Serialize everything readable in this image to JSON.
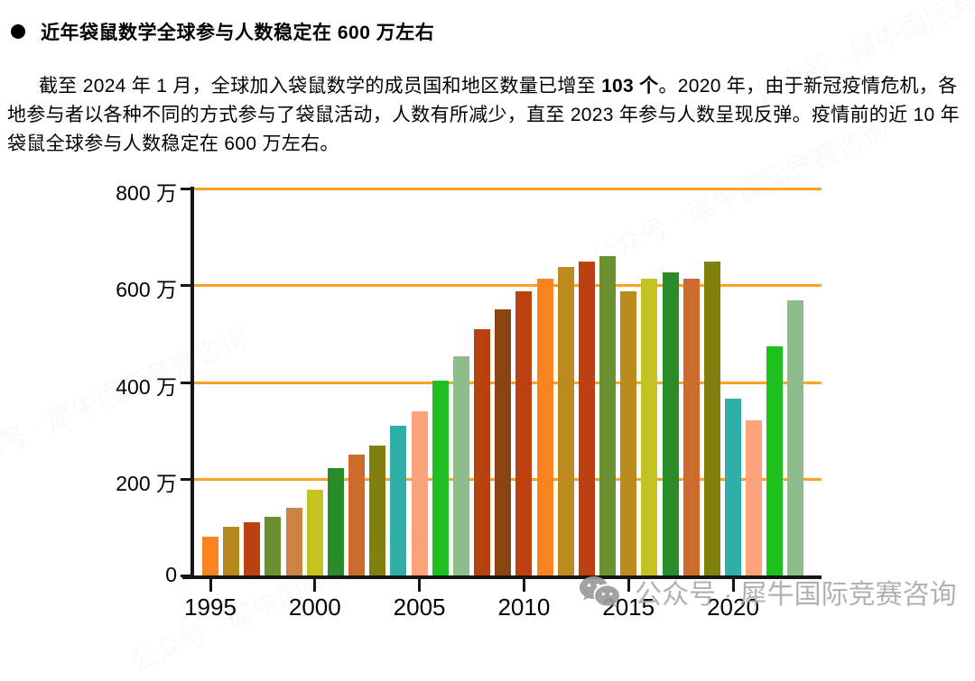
{
  "header": {
    "bullet_icon": "circle",
    "title": "近年袋鼠数学全球参与人数稳定在 600 万左右"
  },
  "paragraph": {
    "text_before_bold": "截至 2024 年 1 月，全球加入袋鼠数学的成员国和地区数量已增至 ",
    "bold": "103 个",
    "text_after_bold": "。2020 年，由于新冠疫情危机，各地参与者以各种不同的方式参与了袋鼠活动，人数有所减少，直至 2023 年参与人数呈现反弹。疫情前的近 10 年袋鼠全球参与人数稳定在 600 万左右。"
  },
  "watermark": {
    "icon": "wechat-icon",
    "text": "公众号 · 犀牛国际竞赛咨询",
    "color": "#ABABAB"
  },
  "chart_data": {
    "type": "bar",
    "title": "",
    "xlabel": "",
    "ylabel": "",
    "unit": "万",
    "ylim": [
      0,
      800
    ],
    "grid": "horizontal",
    "gridline_color": "#FCA326",
    "axis_color": "#161616",
    "x": [
      1995,
      1996,
      1997,
      1998,
      1999,
      2000,
      2001,
      2002,
      2003,
      2004,
      2005,
      2006,
      2007,
      2008,
      2009,
      2010,
      2011,
      2012,
      2013,
      2014,
      2015,
      2016,
      2017,
      2018,
      2019,
      2020,
      2021,
      2022,
      2023
    ],
    "values": [
      80,
      101,
      110,
      121,
      140,
      178,
      222,
      250,
      268,
      310,
      340,
      402,
      453,
      510,
      550,
      587,
      613,
      637,
      649,
      660,
      587,
      613,
      626,
      613,
      649,
      366,
      320,
      473,
      568
    ],
    "bar_colors": [
      "#FC8420",
      "#B8871E",
      "#BC4112",
      "#6C9030",
      "#CC8344",
      "#C5C322",
      "#2A8C28",
      "#CC6B2C",
      "#80800F",
      "#2FAFA7",
      "#FCA37C",
      "#1FBF1F",
      "#8FBC8B",
      "#B84110",
      "#8B4513",
      "#BC4010",
      "#FC8420",
      "#BD8A1E",
      "#BC4112",
      "#6C9030",
      "#BD8A1E",
      "#C5C322",
      "#2A8C28",
      "#CC6B2C",
      "#80800F",
      "#2FAFA7",
      "#FCA37C",
      "#1FBF1F",
      "#8FBC8B"
    ],
    "y_ticks": [
      {
        "value": 800,
        "label": "800 万"
      },
      {
        "value": 600,
        "label": "600 万"
      },
      {
        "value": 400,
        "label": "400 万"
      },
      {
        "value": 200,
        "label": "200 万"
      },
      {
        "value": 0,
        "label": "0"
      }
    ],
    "x_tick_labels": [
      "1995",
      "2000",
      "2005",
      "2010",
      "2015",
      "2020"
    ],
    "x_tick_years": [
      1995,
      2000,
      2005,
      2010,
      2015,
      2020
    ],
    "legend": "none"
  }
}
